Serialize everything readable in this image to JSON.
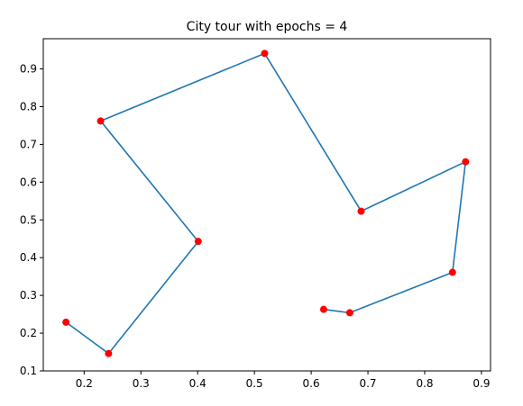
{
  "chart_data": {
    "type": "line",
    "title": "City tour with epochs = 4",
    "xlabel": "",
    "ylabel": "",
    "xlim": [
      0.128,
      0.916
    ],
    "ylim": [
      0.1,
      0.98
    ],
    "xticks": [
      0.2,
      0.3,
      0.4,
      0.5,
      0.6,
      0.7,
      0.8,
      0.9
    ],
    "xtick_labels": [
      "0.2",
      "0.3",
      "0.4",
      "0.5",
      "0.6",
      "0.7",
      "0.8",
      "0.9"
    ],
    "yticks": [
      0.1,
      0.2,
      0.3,
      0.4,
      0.5,
      0.6,
      0.7,
      0.8,
      0.9
    ],
    "ytick_labels": [
      "0.1",
      "0.2",
      "0.3",
      "0.4",
      "0.5",
      "0.6",
      "0.7",
      "0.8",
      "0.9"
    ],
    "grid": false,
    "line_color": "#1f77b4",
    "point_color": "#ff0000",
    "tour": [
      {
        "x": 0.622,
        "y": 0.263
      },
      {
        "x": 0.668,
        "y": 0.254
      },
      {
        "x": 0.849,
        "y": 0.361
      },
      {
        "x": 0.872,
        "y": 0.654
      },
      {
        "x": 0.688,
        "y": 0.523
      },
      {
        "x": 0.518,
        "y": 0.941
      },
      {
        "x": 0.229,
        "y": 0.762
      },
      {
        "x": 0.401,
        "y": 0.443
      },
      {
        "x": 0.243,
        "y": 0.146
      },
      {
        "x": 0.168,
        "y": 0.229
      }
    ]
  }
}
